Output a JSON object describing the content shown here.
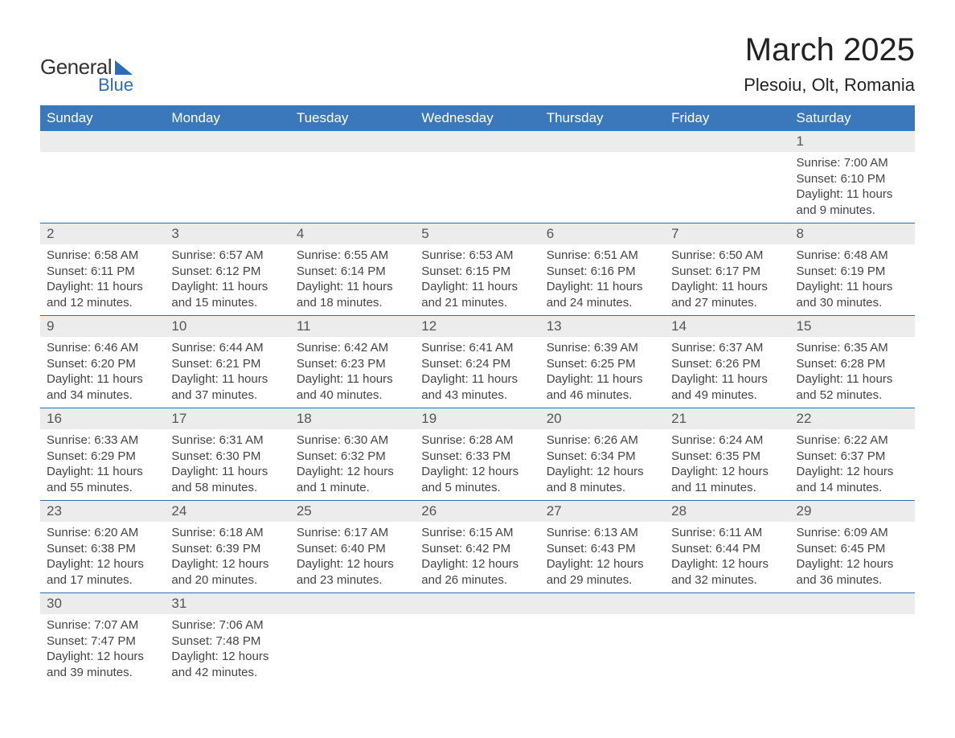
{
  "logo": {
    "line1": "General",
    "line2": "Blue",
    "text_color": "#333333",
    "accent_color": "#2a6eb8"
  },
  "title": "March 2025",
  "location": "Plesoiu, Olt, Romania",
  "colors": {
    "header_bg": "#3a78bb",
    "header_text": "#ffffff",
    "daynum_bg": "#ececec",
    "border": "#2a6eb8",
    "body_text": "#444444",
    "daynum_text": "#555555",
    "page_bg": "#ffffff"
  },
  "fonts": {
    "title_size_pt": 30,
    "location_size_pt": 17,
    "dayhead_size_pt": 13,
    "daynum_size_pt": 13,
    "detail_size_pt": 11
  },
  "day_headers": [
    "Sunday",
    "Monday",
    "Tuesday",
    "Wednesday",
    "Thursday",
    "Friday",
    "Saturday"
  ],
  "weeks": [
    [
      null,
      null,
      null,
      null,
      null,
      null,
      {
        "n": "1",
        "sunrise": "Sunrise: 7:00 AM",
        "sunset": "Sunset: 6:10 PM",
        "dl1": "Daylight: 11 hours",
        "dl2": "and 9 minutes."
      }
    ],
    [
      {
        "n": "2",
        "sunrise": "Sunrise: 6:58 AM",
        "sunset": "Sunset: 6:11 PM",
        "dl1": "Daylight: 11 hours",
        "dl2": "and 12 minutes."
      },
      {
        "n": "3",
        "sunrise": "Sunrise: 6:57 AM",
        "sunset": "Sunset: 6:12 PM",
        "dl1": "Daylight: 11 hours",
        "dl2": "and 15 minutes."
      },
      {
        "n": "4",
        "sunrise": "Sunrise: 6:55 AM",
        "sunset": "Sunset: 6:14 PM",
        "dl1": "Daylight: 11 hours",
        "dl2": "and 18 minutes."
      },
      {
        "n": "5",
        "sunrise": "Sunrise: 6:53 AM",
        "sunset": "Sunset: 6:15 PM",
        "dl1": "Daylight: 11 hours",
        "dl2": "and 21 minutes."
      },
      {
        "n": "6",
        "sunrise": "Sunrise: 6:51 AM",
        "sunset": "Sunset: 6:16 PM",
        "dl1": "Daylight: 11 hours",
        "dl2": "and 24 minutes."
      },
      {
        "n": "7",
        "sunrise": "Sunrise: 6:50 AM",
        "sunset": "Sunset: 6:17 PM",
        "dl1": "Daylight: 11 hours",
        "dl2": "and 27 minutes."
      },
      {
        "n": "8",
        "sunrise": "Sunrise: 6:48 AM",
        "sunset": "Sunset: 6:19 PM",
        "dl1": "Daylight: 11 hours",
        "dl2": "and 30 minutes."
      }
    ],
    [
      {
        "n": "9",
        "sunrise": "Sunrise: 6:46 AM",
        "sunset": "Sunset: 6:20 PM",
        "dl1": "Daylight: 11 hours",
        "dl2": "and 34 minutes."
      },
      {
        "n": "10",
        "sunrise": "Sunrise: 6:44 AM",
        "sunset": "Sunset: 6:21 PM",
        "dl1": "Daylight: 11 hours",
        "dl2": "and 37 minutes."
      },
      {
        "n": "11",
        "sunrise": "Sunrise: 6:42 AM",
        "sunset": "Sunset: 6:23 PM",
        "dl1": "Daylight: 11 hours",
        "dl2": "and 40 minutes."
      },
      {
        "n": "12",
        "sunrise": "Sunrise: 6:41 AM",
        "sunset": "Sunset: 6:24 PM",
        "dl1": "Daylight: 11 hours",
        "dl2": "and 43 minutes."
      },
      {
        "n": "13",
        "sunrise": "Sunrise: 6:39 AM",
        "sunset": "Sunset: 6:25 PM",
        "dl1": "Daylight: 11 hours",
        "dl2": "and 46 minutes."
      },
      {
        "n": "14",
        "sunrise": "Sunrise: 6:37 AM",
        "sunset": "Sunset: 6:26 PM",
        "dl1": "Daylight: 11 hours",
        "dl2": "and 49 minutes."
      },
      {
        "n": "15",
        "sunrise": "Sunrise: 6:35 AM",
        "sunset": "Sunset: 6:28 PM",
        "dl1": "Daylight: 11 hours",
        "dl2": "and 52 minutes."
      }
    ],
    [
      {
        "n": "16",
        "sunrise": "Sunrise: 6:33 AM",
        "sunset": "Sunset: 6:29 PM",
        "dl1": "Daylight: 11 hours",
        "dl2": "and 55 minutes."
      },
      {
        "n": "17",
        "sunrise": "Sunrise: 6:31 AM",
        "sunset": "Sunset: 6:30 PM",
        "dl1": "Daylight: 11 hours",
        "dl2": "and 58 minutes."
      },
      {
        "n": "18",
        "sunrise": "Sunrise: 6:30 AM",
        "sunset": "Sunset: 6:32 PM",
        "dl1": "Daylight: 12 hours",
        "dl2": "and 1 minute."
      },
      {
        "n": "19",
        "sunrise": "Sunrise: 6:28 AM",
        "sunset": "Sunset: 6:33 PM",
        "dl1": "Daylight: 12 hours",
        "dl2": "and 5 minutes."
      },
      {
        "n": "20",
        "sunrise": "Sunrise: 6:26 AM",
        "sunset": "Sunset: 6:34 PM",
        "dl1": "Daylight: 12 hours",
        "dl2": "and 8 minutes."
      },
      {
        "n": "21",
        "sunrise": "Sunrise: 6:24 AM",
        "sunset": "Sunset: 6:35 PM",
        "dl1": "Daylight: 12 hours",
        "dl2": "and 11 minutes."
      },
      {
        "n": "22",
        "sunrise": "Sunrise: 6:22 AM",
        "sunset": "Sunset: 6:37 PM",
        "dl1": "Daylight: 12 hours",
        "dl2": "and 14 minutes."
      }
    ],
    [
      {
        "n": "23",
        "sunrise": "Sunrise: 6:20 AM",
        "sunset": "Sunset: 6:38 PM",
        "dl1": "Daylight: 12 hours",
        "dl2": "and 17 minutes."
      },
      {
        "n": "24",
        "sunrise": "Sunrise: 6:18 AM",
        "sunset": "Sunset: 6:39 PM",
        "dl1": "Daylight: 12 hours",
        "dl2": "and 20 minutes."
      },
      {
        "n": "25",
        "sunrise": "Sunrise: 6:17 AM",
        "sunset": "Sunset: 6:40 PM",
        "dl1": "Daylight: 12 hours",
        "dl2": "and 23 minutes."
      },
      {
        "n": "26",
        "sunrise": "Sunrise: 6:15 AM",
        "sunset": "Sunset: 6:42 PM",
        "dl1": "Daylight: 12 hours",
        "dl2": "and 26 minutes."
      },
      {
        "n": "27",
        "sunrise": "Sunrise: 6:13 AM",
        "sunset": "Sunset: 6:43 PM",
        "dl1": "Daylight: 12 hours",
        "dl2": "and 29 minutes."
      },
      {
        "n": "28",
        "sunrise": "Sunrise: 6:11 AM",
        "sunset": "Sunset: 6:44 PM",
        "dl1": "Daylight: 12 hours",
        "dl2": "and 32 minutes."
      },
      {
        "n": "29",
        "sunrise": "Sunrise: 6:09 AM",
        "sunset": "Sunset: 6:45 PM",
        "dl1": "Daylight: 12 hours",
        "dl2": "and 36 minutes."
      }
    ],
    [
      {
        "n": "30",
        "sunrise": "Sunrise: 7:07 AM",
        "sunset": "Sunset: 7:47 PM",
        "dl1": "Daylight: 12 hours",
        "dl2": "and 39 minutes."
      },
      {
        "n": "31",
        "sunrise": "Sunrise: 7:06 AM",
        "sunset": "Sunset: 7:48 PM",
        "dl1": "Daylight: 12 hours",
        "dl2": "and 42 minutes."
      },
      null,
      null,
      null,
      null,
      null
    ]
  ]
}
